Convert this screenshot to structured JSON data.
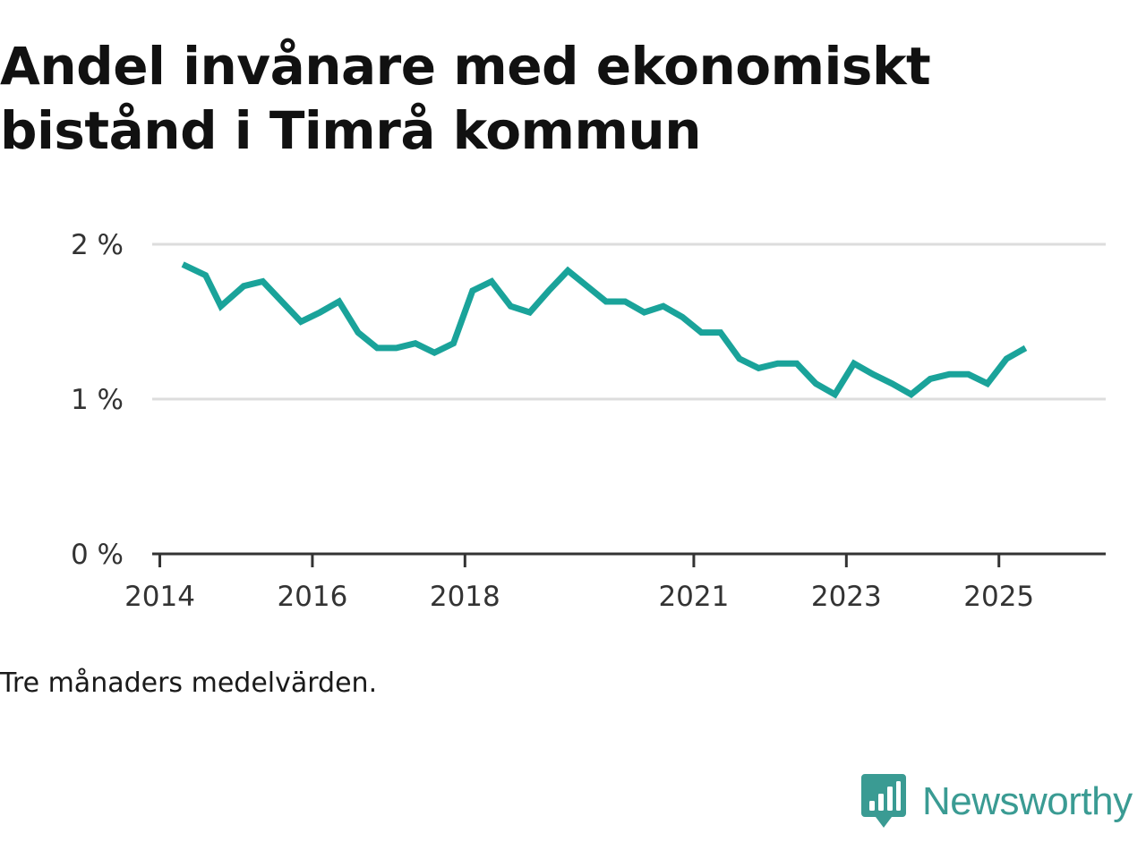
{
  "title": "Andel invånare med ekonomiskt bistånd i Timrå kommun",
  "caption": "Tre månaders medelvärden.",
  "brand": {
    "name": "Newsworthy",
    "icon": "newsworthy-logo-icon",
    "color": "#3a9b93"
  },
  "chart_data": {
    "type": "line",
    "title": "Andel invånare med ekonomiskt bistånd i Timrå kommun",
    "xlabel": "",
    "ylabel": "",
    "xlim": [
      2013.9,
      2026.4
    ],
    "ylim": [
      0,
      2
    ],
    "x_ticks": [
      2014,
      2016,
      2018,
      2021,
      2023,
      2025
    ],
    "x_tick_labels": [
      "2014",
      "2016",
      "2018",
      "2021",
      "2023",
      "2025"
    ],
    "y_ticks": [
      0,
      1,
      2
    ],
    "y_tick_labels": [
      "0 %",
      "1 %",
      "2 %"
    ],
    "grid": true,
    "line_color": "#1aa39a",
    "series": [
      {
        "x": [
          2014.3,
          2014.6,
          2014.8,
          2015.1,
          2015.35,
          2015.6,
          2015.85,
          2016.1,
          2016.35,
          2016.6,
          2016.85,
          2017.1,
          2017.35,
          2017.6,
          2017.85,
          2018.1,
          2018.35,
          2018.6,
          2018.85,
          2019.1,
          2019.35,
          2019.6,
          2019.85,
          2020.1,
          2020.35,
          2020.6,
          2020.85,
          2021.1,
          2021.35,
          2021.6,
          2021.85,
          2022.1,
          2022.35,
          2022.6,
          2022.85,
          2023.1,
          2023.35,
          2023.6,
          2023.85,
          2024.1,
          2024.35,
          2024.6,
          2024.85,
          2025.1,
          2025.35
        ],
        "values": [
          1.87,
          1.8,
          1.6,
          1.73,
          1.76,
          1.63,
          1.5,
          1.56,
          1.63,
          1.43,
          1.33,
          1.33,
          1.36,
          1.3,
          1.36,
          1.7,
          1.76,
          1.6,
          1.56,
          1.7,
          1.83,
          1.73,
          1.63,
          1.63,
          1.56,
          1.6,
          1.53,
          1.43,
          1.43,
          1.26,
          1.2,
          1.23,
          1.23,
          1.1,
          1.03,
          1.23,
          1.16,
          1.1,
          1.03,
          1.13,
          1.16,
          1.16,
          1.1,
          1.26,
          1.33
        ]
      }
    ]
  }
}
